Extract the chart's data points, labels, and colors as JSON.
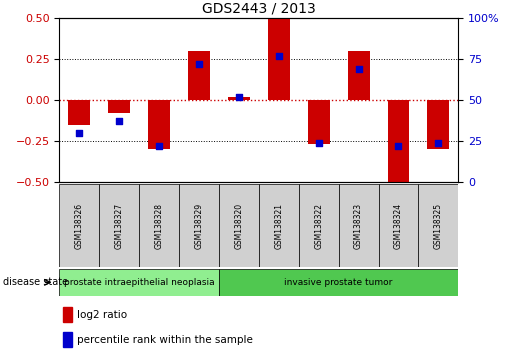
{
  "title": "GDS2443 / 2013",
  "samples": [
    "GSM138326",
    "GSM138327",
    "GSM138328",
    "GSM138329",
    "GSM138320",
    "GSM138321",
    "GSM138322",
    "GSM138323",
    "GSM138324",
    "GSM138325"
  ],
  "log2_ratio": [
    -0.15,
    -0.08,
    -0.3,
    0.3,
    0.02,
    0.5,
    -0.27,
    0.3,
    -0.5,
    -0.3
  ],
  "percentile": [
    30,
    37,
    22,
    72,
    52,
    77,
    24,
    69,
    22,
    24
  ],
  "ylim": [
    -0.5,
    0.5
  ],
  "yticks_left": [
    -0.5,
    -0.25,
    0,
    0.25,
    0.5
  ],
  "yticks_right": [
    0,
    25,
    50,
    75,
    100
  ],
  "bar_color": "#cc0000",
  "dot_color": "#0000cc",
  "disease_groups": [
    {
      "label": "prostate intraepithelial neoplasia",
      "start": 0,
      "end": 4,
      "color": "#90ee90"
    },
    {
      "label": "invasive prostate tumor",
      "start": 4,
      "end": 10,
      "color": "#50c850"
    }
  ],
  "legend_items": [
    {
      "label": "log2 ratio",
      "color": "#cc0000"
    },
    {
      "label": "percentile rank within the sample",
      "color": "#0000cc"
    }
  ],
  "disease_state_label": "disease state",
  "bar_width": 0.55,
  "dot_size": 18,
  "gridline_style": "dotted",
  "background_color": "#ffffff",
  "left_label_color": "#cc0000",
  "right_label_color": "#0000cc",
  "zero_line_color": "#cc0000",
  "zero_line_style": "dotted"
}
